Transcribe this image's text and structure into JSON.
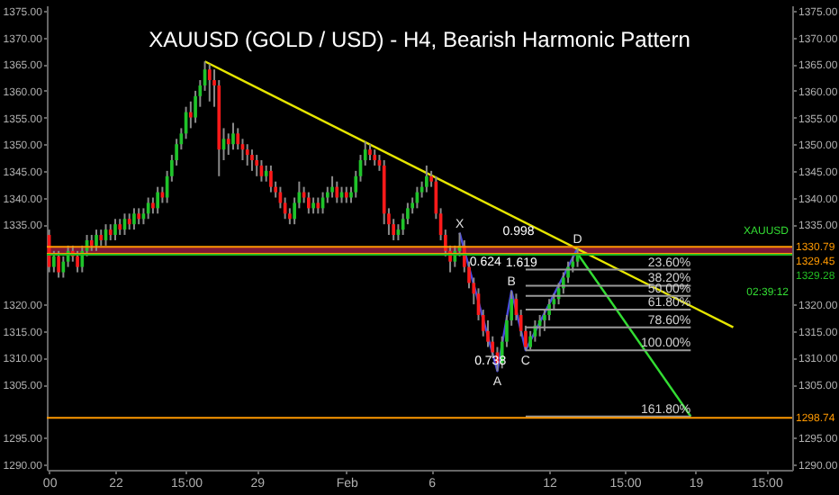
{
  "chart_data": {
    "type": "candlestick",
    "title": "XAUUSD (GOLD / USD) - H4, Bearish Harmonic Pattern",
    "categories": [
      "00",
      null,
      null,
      null,
      null,
      null,
      null,
      null,
      null,
      null,
      null,
      null,
      null,
      null,
      "22",
      null,
      null,
      null,
      null,
      null,
      null,
      null,
      null,
      null,
      null,
      null,
      null,
      null,
      null,
      "15:00",
      null,
      null,
      null,
      null,
      null,
      null,
      null,
      null,
      null,
      null,
      null,
      null,
      null,
      null,
      "29",
      null,
      null,
      null,
      null,
      null,
      null,
      null,
      null,
      null,
      null,
      null,
      null,
      null,
      null,
      null,
      null,
      null,
      null,
      "Feb",
      null,
      null,
      null,
      null,
      null,
      null,
      null,
      null,
      null,
      null,
      null,
      null,
      null,
      null,
      null,
      null,
      null,
      "6",
      null,
      null,
      null,
      null,
      null,
      null,
      null,
      null,
      null,
      null,
      null,
      null,
      null,
      null,
      null,
      null,
      null,
      null,
      null,
      null,
      null,
      null,
      null,
      null,
      "12",
      null,
      null,
      null,
      null,
      null,
      null,
      null,
      null,
      null,
      null,
      null,
      null,
      null,
      null,
      null,
      "15:00",
      null,
      null,
      null,
      null,
      null,
      null,
      null,
      null,
      null,
      null,
      null,
      null,
      null,
      null,
      "19",
      null,
      null,
      null,
      null,
      null,
      null,
      null,
      null,
      null,
      null,
      null,
      null,
      null,
      null,
      "15:00",
      null,
      null,
      null,
      null,
      null
    ],
    "ohlc": [
      [
        1333,
        1334,
        1326,
        1327
      ],
      [
        1327,
        1330,
        1326,
        1329
      ],
      [
        1329,
        1330,
        1325,
        1326
      ],
      [
        1326,
        1329,
        1325,
        1328
      ],
      [
        1328,
        1331,
        1327,
        1330
      ],
      [
        1330,
        1331,
        1328,
        1329
      ],
      [
        1329,
        1330,
        1326,
        1327
      ],
      [
        1327,
        1331,
        1326,
        1330
      ],
      [
        1330,
        1333,
        1329,
        1332
      ],
      [
        1332,
        1333,
        1330,
        1331
      ],
      [
        1331,
        1334,
        1330,
        1333
      ],
      [
        1333,
        1334,
        1331,
        1332
      ],
      [
        1332,
        1335,
        1331,
        1334
      ],
      [
        1334,
        1335,
        1332,
        1333
      ],
      [
        1333,
        1336,
        1332,
        1335
      ],
      [
        1335,
        1336,
        1333,
        1334
      ],
      [
        1334,
        1337,
        1333,
        1336
      ],
      [
        1336,
        1337,
        1334,
        1335
      ],
      [
        1335,
        1338,
        1334,
        1337
      ],
      [
        1337,
        1338,
        1335,
        1336
      ],
      [
        1336,
        1338,
        1335,
        1337
      ],
      [
        1337,
        1340,
        1336,
        1339
      ],
      [
        1339,
        1340,
        1337,
        1338
      ],
      [
        1338,
        1342,
        1337,
        1341
      ],
      [
        1341,
        1342,
        1339,
        1340
      ],
      [
        1340,
        1345,
        1339,
        1344
      ],
      [
        1344,
        1348,
        1343,
        1347
      ],
      [
        1347,
        1351,
        1346,
        1350
      ],
      [
        1350,
        1353,
        1349,
        1352
      ],
      [
        1352,
        1357,
        1351,
        1356
      ],
      [
        1356,
        1358,
        1353,
        1355
      ],
      [
        1355,
        1360,
        1354,
        1359
      ],
      [
        1359,
        1362,
        1357,
        1361
      ],
      [
        1361,
        1365.5,
        1360,
        1364
      ],
      [
        1364,
        1365,
        1358,
        1362
      ],
      [
        1362,
        1364,
        1357,
        1361
      ],
      [
        1361,
        1362,
        1344,
        1349
      ],
      [
        1349,
        1353,
        1347,
        1351
      ],
      [
        1351,
        1352,
        1348,
        1350
      ],
      [
        1350,
        1354,
        1349,
        1352
      ],
      [
        1352,
        1353,
        1349,
        1350
      ],
      [
        1350,
        1351,
        1347,
        1349
      ],
      [
        1349,
        1350,
        1346,
        1348
      ],
      [
        1348,
        1349,
        1345,
        1347
      ],
      [
        1347,
        1348,
        1344,
        1346
      ],
      [
        1346,
        1347,
        1343,
        1344
      ],
      [
        1344,
        1346,
        1343,
        1345
      ],
      [
        1345,
        1346,
        1341,
        1342
      ],
      [
        1342,
        1343,
        1340,
        1341
      ],
      [
        1341,
        1342,
        1338,
        1339
      ],
      [
        1339,
        1340,
        1336,
        1337
      ],
      [
        1337,
        1338,
        1335,
        1336
      ],
      [
        1336,
        1340,
        1335,
        1339
      ],
      [
        1339,
        1343,
        1338,
        1341
      ],
      [
        1341,
        1342,
        1339,
        1340
      ],
      [
        1340,
        1341,
        1337,
        1338
      ],
      [
        1338,
        1340,
        1337,
        1339
      ],
      [
        1339,
        1340,
        1337,
        1338
      ],
      [
        1338,
        1341,
        1337,
        1340
      ],
      [
        1340,
        1342,
        1339,
        1341
      ],
      [
        1341,
        1344,
        1340,
        1342
      ],
      [
        1342,
        1343,
        1339,
        1340
      ],
      [
        1340,
        1342,
        1339,
        1341
      ],
      [
        1341,
        1342,
        1339,
        1340
      ],
      [
        1340,
        1342,
        1339,
        1341
      ],
      [
        1341,
        1345,
        1340,
        1344
      ],
      [
        1344,
        1348,
        1343,
        1347
      ],
      [
        1347,
        1350.5,
        1346,
        1349
      ],
      [
        1349,
        1350,
        1347,
        1348
      ],
      [
        1348,
        1349,
        1346,
        1347
      ],
      [
        1347,
        1348,
        1345,
        1346
      ],
      [
        1346,
        1347,
        1335,
        1337
      ],
      [
        1337,
        1338,
        1333,
        1335
      ],
      [
        1335,
        1336,
        1332,
        1333
      ],
      [
        1333,
        1335,
        1332,
        1334
      ],
      [
        1334,
        1337,
        1333,
        1336
      ],
      [
        1336,
        1339,
        1335,
        1338
      ],
      [
        1338,
        1340,
        1337,
        1339
      ],
      [
        1339,
        1342,
        1338,
        1341
      ],
      [
        1341,
        1343,
        1340,
        1342
      ],
      [
        1342,
        1346,
        1341,
        1344
      ],
      [
        1344,
        1345,
        1342,
        1343
      ],
      [
        1343,
        1344,
        1336,
        1337
      ],
      [
        1337,
        1338,
        1332,
        1333
      ],
      [
        1333,
        1334,
        1329,
        1330
      ],
      [
        1330,
        1331,
        1326,
        1328
      ],
      [
        1328,
        1331,
        1327,
        1330
      ],
      [
        1330,
        1333.4,
        1329,
        1331
      ],
      [
        1331,
        1332,
        1326,
        1327
      ],
      [
        1327,
        1328,
        1323,
        1324
      ],
      [
        1324,
        1325,
        1320,
        1322
      ],
      [
        1322,
        1323,
        1317,
        1318
      ],
      [
        1318,
        1319,
        1314,
        1315
      ],
      [
        1315,
        1317,
        1312,
        1313
      ],
      [
        1313,
        1314,
        1310,
        1311
      ],
      [
        1311,
        1312,
        1307.5,
        1309
      ],
      [
        1309,
        1314,
        1308,
        1313
      ],
      [
        1313,
        1318,
        1312,
        1317
      ],
      [
        1317,
        1322.5,
        1316,
        1321
      ],
      [
        1321,
        1322,
        1317,
        1318
      ],
      [
        1318,
        1319,
        1314,
        1315
      ],
      [
        1315,
        1316,
        1311.4,
        1312
      ],
      [
        1312,
        1315,
        1311.5,
        1314
      ],
      [
        1314,
        1317,
        1313,
        1316
      ],
      [
        1316,
        1318,
        1314,
        1317
      ],
      [
        1317,
        1319,
        1315,
        1318
      ],
      [
        1318,
        1321,
        1317,
        1320
      ],
      [
        1320,
        1322,
        1319,
        1321
      ],
      [
        1321,
        1324,
        1320,
        1323
      ],
      [
        1323,
        1326,
        1322,
        1325
      ],
      [
        1325,
        1328,
        1324,
        1327
      ],
      [
        1327,
        1329,
        1326,
        1328
      ],
      [
        1328,
        1330.5,
        1327,
        1329.28
      ],
      null,
      null,
      null,
      null,
      null,
      null,
      null,
      null,
      null,
      null,
      null,
      null,
      null,
      null,
      null,
      null,
      null,
      null,
      null,
      null,
      null,
      null,
      null,
      null,
      null,
      null,
      null,
      null,
      null,
      null,
      null,
      null,
      null,
      null,
      null,
      null,
      null,
      null,
      null,
      null,
      null,
      null,
      null,
      null,
      null
    ],
    "series": [
      {
        "type": "line",
        "color": "#4a4ae0",
        "values": [
          null,
          null,
          null,
          null,
          null,
          null,
          null,
          null,
          null,
          null,
          null,
          null,
          null,
          null,
          null,
          null,
          null,
          null,
          null,
          null,
          null,
          null,
          null,
          null,
          null,
          null,
          null,
          null,
          null,
          null,
          null,
          null,
          null,
          null,
          null,
          null,
          null,
          null,
          null,
          null,
          null,
          null,
          null,
          null,
          null,
          null,
          null,
          null,
          null,
          null,
          null,
          null,
          null,
          null,
          null,
          null,
          null,
          null,
          null,
          null,
          null,
          null,
          null,
          null,
          null,
          null,
          null,
          null,
          null,
          null,
          null,
          null,
          null,
          null,
          null,
          null,
          null,
          null,
          null,
          null,
          null,
          null,
          null,
          null,
          null,
          null,
          null,
          1333.4,
          null,
          null,
          null,
          null,
          null,
          null,
          null,
          1307.5,
          null,
          null,
          1322.5,
          null,
          null,
          1311.4,
          null,
          null,
          null,
          null,
          null,
          null,
          null,
          null,
          null,
          null,
          1330.5,
          null,
          null,
          null,
          null,
          null,
          null,
          null,
          null,
          null,
          null,
          null,
          null,
          null,
          null,
          null,
          null,
          null,
          null,
          null,
          null,
          null,
          null,
          null,
          null,
          null,
          null,
          null,
          null,
          null,
          null,
          null,
          null,
          null,
          null,
          null,
          null,
          null,
          null,
          null,
          null,
          null,
          null,
          null,
          null,
          null
        ]
      },
      {
        "type": "line",
        "color": "#e6e600",
        "values": [
          null,
          null,
          null,
          null,
          null,
          null,
          null,
          null,
          null,
          null,
          null,
          null,
          null,
          null,
          null,
          null,
          null,
          null,
          null,
          null,
          null,
          null,
          null,
          null,
          null,
          null,
          null,
          null,
          null,
          null,
          null,
          null,
          null,
          1365.5,
          null,
          null,
          null,
          null,
          null,
          null,
          null,
          null,
          null,
          null,
          null,
          null,
          null,
          null,
          null,
          null,
          null,
          null,
          null,
          null,
          null,
          null,
          null,
          null,
          null,
          null,
          null,
          null,
          null,
          null,
          null,
          null,
          null,
          null,
          null,
          null,
          null,
          null,
          null,
          null,
          null,
          null,
          null,
          null,
          null,
          null,
          null,
          null,
          null,
          null,
          null,
          null,
          null,
          null,
          null,
          null,
          null,
          null,
          null,
          null,
          null,
          null,
          null,
          null,
          null,
          null,
          null,
          null,
          null,
          null,
          null,
          null,
          null,
          null,
          null,
          null,
          null,
          null,
          null,
          null,
          null,
          null,
          null,
          null,
          null,
          null,
          null,
          null,
          null,
          null,
          null,
          null,
          null,
          null,
          null,
          null,
          null,
          null,
          null,
          null,
          null,
          null,
          null,
          null,
          null,
          null,
          null,
          null,
          null,
          null,
          null,
          1315.7,
          null,
          null,
          null,
          null,
          null,
          null,
          null,
          null,
          null,
          null,
          null,
          null
        ]
      },
      {
        "type": "line",
        "color": "#33dd33",
        "values": [
          null,
          null,
          null,
          null,
          null,
          null,
          null,
          null,
          null,
          null,
          null,
          null,
          null,
          null,
          null,
          null,
          null,
          null,
          null,
          null,
          null,
          null,
          null,
          null,
          null,
          null,
          null,
          null,
          null,
          null,
          null,
          null,
          null,
          null,
          null,
          null,
          null,
          null,
          null,
          null,
          null,
          null,
          null,
          null,
          null,
          null,
          null,
          null,
          null,
          null,
          null,
          null,
          null,
          null,
          null,
          null,
          null,
          null,
          null,
          null,
          null,
          null,
          null,
          null,
          null,
          null,
          null,
          null,
          null,
          null,
          null,
          null,
          null,
          null,
          null,
          null,
          null,
          null,
          null,
          null,
          null,
          null,
          null,
          null,
          null,
          null,
          null,
          null,
          null,
          null,
          null,
          null,
          null,
          null,
          null,
          null,
          null,
          null,
          null,
          null,
          null,
          null,
          null,
          null,
          null,
          null,
          null,
          null,
          null,
          null,
          null,
          null,
          1329.5,
          null,
          null,
          null,
          null,
          null,
          null,
          null,
          null,
          null,
          null,
          null,
          null,
          null,
          null,
          null,
          null,
          null,
          null,
          null,
          null,
          null,
          null,
          null,
          1299,
          null,
          null,
          null,
          null,
          null,
          null,
          null,
          null,
          null,
          null,
          null,
          null,
          null,
          null,
          null,
          null,
          null,
          null,
          null,
          null,
          null
        ]
      }
    ],
    "ylim": [
      1289,
      1376
    ],
    "yticks": [
      {
        "value": 1290,
        "label": "1290.00"
      },
      {
        "value": 1295,
        "label": "1295.00"
      },
      {
        "value": 1305,
        "label": "1305.00"
      },
      {
        "value": 1310,
        "label": "1310.00"
      },
      {
        "value": 1315,
        "label": "1315.00"
      },
      {
        "value": 1320,
        "label": "1320.00"
      },
      {
        "value": 1335,
        "label": "1335.00"
      },
      {
        "value": 1340,
        "label": "1340.00"
      },
      {
        "value": 1345,
        "label": "1345.00"
      },
      {
        "value": 1350,
        "label": "1350.00"
      },
      {
        "value": 1355,
        "label": "1355.00"
      },
      {
        "value": 1360,
        "label": "1360.00"
      },
      {
        "value": 1365,
        "label": "1365.00"
      },
      {
        "value": 1370,
        "label": "1370.00"
      },
      {
        "value": 1375,
        "label": "1375.00"
      }
    ],
    "y2lim": [
      1289,
      1376
    ],
    "y2ticks": [
      {
        "value": 1290,
        "label": "1290.00"
      },
      {
        "value": 1295,
        "label": "1295.00"
      },
      {
        "value": 1305,
        "label": "1305.00"
      },
      {
        "value": 1310,
        "label": "1310.00"
      },
      {
        "value": 1315,
        "label": "1315.00"
      },
      {
        "value": 1320,
        "label": "1320.00"
      },
      {
        "value": 1335,
        "label": "1335.00"
      },
      {
        "value": 1340,
        "label": "1340.00"
      },
      {
        "value": 1345,
        "label": "1345.00"
      },
      {
        "value": 1350,
        "label": "1350.00"
      },
      {
        "value": 1355,
        "label": "1355.00"
      },
      {
        "value": 1360,
        "label": "1360.00"
      },
      {
        "value": 1365,
        "label": "1365.00"
      },
      {
        "value": 1370,
        "label": "1370.00"
      },
      {
        "value": 1375,
        "label": "1375.00"
      }
    ],
    "bands": [
      {
        "axis": "y",
        "from": 1329.45,
        "to": 1330.79,
        "color": "#8c1a3c"
      }
    ],
    "ref_lines": [
      {
        "axis": "y",
        "value": 1326.5,
        "color": "#9a9a9a"
      },
      {
        "axis": "y",
        "value": 1323.5,
        "color": "#9a9a9a"
      },
      {
        "axis": "y",
        "value": 1321.6,
        "color": "#9a9a9a"
      },
      {
        "axis": "y",
        "value": 1319,
        "color": "#9a9a9a"
      },
      {
        "axis": "y",
        "value": 1315.7,
        "color": "#9a9a9a"
      },
      {
        "axis": "y",
        "value": 1311.4,
        "color": "#9a9a9a"
      },
      {
        "axis": "y",
        "value": 1299,
        "color": "#9a9a9a"
      },
      {
        "axis": "y2",
        "value": 1330.79,
        "label": "1330.79",
        "color": "#ff9900"
      },
      {
        "axis": "y2",
        "value": 1329.45,
        "label": "1329.45",
        "color": "#ff9900"
      },
      {
        "axis": "y2",
        "value": 1329.28,
        "label": "1329.28",
        "color": "#22bb22"
      },
      {
        "axis": "y2",
        "value": 1298.74,
        "label": "1298.74",
        "color": "#ff9900"
      }
    ],
    "annotations": [
      "X",
      "A",
      "B",
      "C",
      "D",
      "0.624",
      "0.738",
      "1.619",
      "0.998",
      "XAUUSD",
      "02:39:12",
      {
        "text": "23.60%",
        "y": 1326.5
      },
      {
        "text": "38.20%",
        "y": 1323.5
      },
      {
        "text": "50.00%",
        "y": 1321.6
      },
      {
        "text": "61.80%",
        "y": 1319
      },
      {
        "text": "78.60%",
        "y": 1315.7
      },
      {
        "text": "100.00%",
        "y": 1311.4
      },
      {
        "text": "161.80%",
        "y": 1299
      }
    ]
  }
}
